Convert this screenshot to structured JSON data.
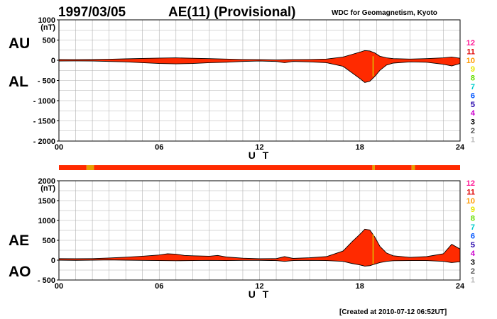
{
  "header": {
    "date": "1997/03/05",
    "title": "AE(11) (Provisional)",
    "source": "WDC for Geomagnetism, Kyoto"
  },
  "footer": {
    "created": "[Created at 2010-07-12 06:52UT]"
  },
  "station_counts": {
    "labels": [
      "12",
      "11",
      "10",
      "9",
      "8",
      "7",
      "6",
      "5",
      "4",
      "3",
      "2",
      "1"
    ],
    "colors": [
      "#ff1493",
      "#e00000",
      "#ff9900",
      "#e6e600",
      "#66dd00",
      "#00cccc",
      "#0055ff",
      "#2200aa",
      "#cc00cc",
      "#000000",
      "#555555",
      "#bbbbbb"
    ]
  },
  "colors": {
    "fill": "#ff2a00",
    "grid": "#b0b0b0",
    "bar_main": "#ff2a00",
    "bar_alt": "#e6a000"
  },
  "chart_data": [
    {
      "type": "area",
      "name": "AU/AL",
      "labels": {
        "upper": "AU",
        "lower": "AL"
      },
      "unit": "(nT)",
      "xlabel": "U T",
      "ylim": [
        -2000,
        1000
      ],
      "yticks": [
        1000,
        500,
        0,
        -500,
        -1000,
        -1500,
        -2000
      ],
      "ytick_labels": [
        "1000",
        "500",
        "0",
        "- 500",
        "- 1000",
        "- 1500",
        "- 2000"
      ],
      "xlim": [
        0,
        24
      ],
      "xticks": [
        0,
        6,
        12,
        18,
        24
      ],
      "xtick_labels": [
        "00",
        "06",
        "12",
        "18",
        "24"
      ],
      "grid": true,
      "series": [
        {
          "values": [
            [
              0,
              20
            ],
            [
              1,
              15
            ],
            [
              2,
              18
            ],
            [
              3,
              25
            ],
            [
              4,
              35
            ],
            [
              5,
              45
            ],
            [
              6,
              55
            ],
            [
              7,
              60
            ],
            [
              8,
              50
            ],
            [
              9,
              40
            ],
            [
              10,
              30
            ],
            [
              11,
              20
            ],
            [
              12,
              15
            ],
            [
              13,
              10
            ],
            [
              14,
              15
            ],
            [
              15,
              20
            ],
            [
              16,
              30
            ],
            [
              17,
              80
            ],
            [
              17.5,
              140
            ],
            [
              18,
              200
            ],
            [
              18.3,
              240
            ],
            [
              18.6,
              230
            ],
            [
              18.9,
              180
            ],
            [
              19.2,
              100
            ],
            [
              19.6,
              60
            ],
            [
              20,
              40
            ],
            [
              21,
              30
            ],
            [
              22,
              40
            ],
            [
              23,
              60
            ],
            [
              23.5,
              80
            ],
            [
              24,
              50
            ]
          ]
        },
        {
          "values": [
            [
              0,
              -20
            ],
            [
              1,
              -15
            ],
            [
              2,
              -20
            ],
            [
              3,
              -30
            ],
            [
              4,
              -40
            ],
            [
              5,
              -60
            ],
            [
              6,
              -80
            ],
            [
              7,
              -90
            ],
            [
              8,
              -80
            ],
            [
              9,
              -60
            ],
            [
              10,
              -50
            ],
            [
              11,
              -30
            ],
            [
              12,
              -20
            ],
            [
              13,
              -30
            ],
            [
              13.5,
              -60
            ],
            [
              14,
              -30
            ],
            [
              15,
              -40
            ],
            [
              16,
              -60
            ],
            [
              17,
              -150
            ],
            [
              17.5,
              -300
            ],
            [
              18,
              -450
            ],
            [
              18.3,
              -550
            ],
            [
              18.6,
              -520
            ],
            [
              18.9,
              -400
            ],
            [
              19.2,
              -250
            ],
            [
              19.6,
              -120
            ],
            [
              20,
              -70
            ],
            [
              21,
              -40
            ],
            [
              22,
              -50
            ],
            [
              23,
              -100
            ],
            [
              23.5,
              -140
            ],
            [
              24,
              -80
            ]
          ]
        }
      ]
    },
    {
      "type": "area",
      "name": "AE/AO",
      "labels": {
        "upper": "AE",
        "lower": "AO"
      },
      "unit": "(nT)",
      "xlabel": "U T",
      "ylim": [
        -500,
        2000
      ],
      "yticks": [
        2000,
        1500,
        1000,
        500,
        0,
        -500
      ],
      "ytick_labels": [
        "2000",
        "1500",
        "1000",
        "500",
        "0",
        "- 500"
      ],
      "xlim": [
        0,
        24
      ],
      "xticks": [
        0,
        6,
        12,
        18,
        24
      ],
      "xtick_labels": [
        "00",
        "06",
        "12",
        "18",
        "24"
      ],
      "grid": true,
      "series": [
        {
          "values": [
            [
              0,
              40
            ],
            [
              1,
              35
            ],
            [
              2,
              40
            ],
            [
              3,
              55
            ],
            [
              4,
              75
            ],
            [
              5,
              100
            ],
            [
              6,
              130
            ],
            [
              6.5,
              160
            ],
            [
              7,
              150
            ],
            [
              7.5,
              120
            ],
            [
              8,
              110
            ],
            [
              9,
              100
            ],
            [
              9.5,
              120
            ],
            [
              10,
              80
            ],
            [
              11,
              50
            ],
            [
              12,
              35
            ],
            [
              13,
              40
            ],
            [
              13.5,
              90
            ],
            [
              14,
              45
            ],
            [
              15,
              60
            ],
            [
              16,
              90
            ],
            [
              17,
              230
            ],
            [
              17.5,
              450
            ],
            [
              18,
              650
            ],
            [
              18.3,
              780
            ],
            [
              18.6,
              760
            ],
            [
              18.9,
              580
            ],
            [
              19.2,
              350
            ],
            [
              19.6,
              180
            ],
            [
              20,
              110
            ],
            [
              21,
              70
            ],
            [
              22,
              90
            ],
            [
              23,
              160
            ],
            [
              23.5,
              400
            ],
            [
              24,
              280
            ]
          ]
        },
        {
          "values": [
            [
              0,
              0
            ],
            [
              1,
              -5
            ],
            [
              2,
              0
            ],
            [
              3,
              5
            ],
            [
              4,
              0
            ],
            [
              5,
              -5
            ],
            [
              6,
              -10
            ],
            [
              7,
              -15
            ],
            [
              8,
              -10
            ],
            [
              9,
              -5
            ],
            [
              10,
              -10
            ],
            [
              11,
              -5
            ],
            [
              12,
              -5
            ],
            [
              13,
              -10
            ],
            [
              13.5,
              -30
            ],
            [
              14,
              -10
            ],
            [
              15,
              -5
            ],
            [
              16,
              -10
            ],
            [
              17,
              -30
            ],
            [
              17.5,
              -80
            ],
            [
              18,
              -120
            ],
            [
              18.3,
              -150
            ],
            [
              18.6,
              -140
            ],
            [
              18.9,
              -100
            ],
            [
              19.2,
              -60
            ],
            [
              19.6,
              -30
            ],
            [
              20,
              -15
            ],
            [
              21,
              -10
            ],
            [
              22,
              -10
            ],
            [
              23,
              -30
            ],
            [
              23.5,
              -60
            ],
            [
              24,
              -40
            ]
          ]
        }
      ]
    }
  ],
  "station_bar": [
    {
      "x0": 0,
      "x1": 1.65,
      "kind": "main"
    },
    {
      "x0": 1.65,
      "x1": 2.1,
      "kind": "alt"
    },
    {
      "x0": 2.1,
      "x1": 18.75,
      "kind": "main"
    },
    {
      "x0": 18.75,
      "x1": 18.9,
      "kind": "alt"
    },
    {
      "x0": 18.9,
      "x1": 21.1,
      "kind": "main"
    },
    {
      "x0": 21.1,
      "x1": 21.3,
      "kind": "alt"
    },
    {
      "x0": 21.3,
      "x1": 24,
      "kind": "main"
    }
  ]
}
